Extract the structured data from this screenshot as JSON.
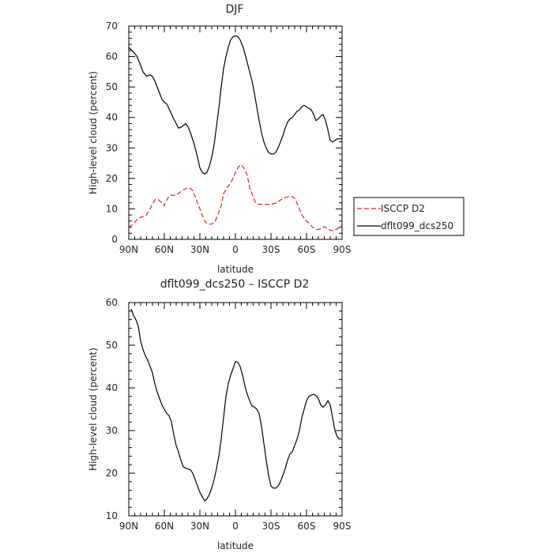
{
  "chart_data": [
    {
      "type": "line",
      "title": "DJF",
      "xlabel": "latitude",
      "ylabel": "High-level cloud (percent)",
      "xlim": [
        90,
        -90
      ],
      "ylim": [
        0,
        70
      ],
      "xticks": [
        90,
        60,
        30,
        0,
        -30,
        -60,
        -90
      ],
      "xtick_labels": [
        "90N",
        "60N",
        "30N",
        "0",
        "30S",
        "60S",
        "90S"
      ],
      "yticks": [
        0,
        10,
        20,
        30,
        40,
        50,
        60,
        70
      ],
      "ytick_labels": [
        "0",
        "10",
        "20",
        "30",
        "40",
        "50",
        "60",
        "70"
      ],
      "legend_position": "right-outside",
      "series": [
        {
          "name": "ISCCP D2",
          "color": "#e41a1c",
          "dash": "dashed",
          "x": [
            90,
            85,
            82,
            78,
            75,
            72,
            68,
            65,
            62,
            60,
            58,
            55,
            50,
            45,
            40,
            37,
            35,
            32,
            30,
            27,
            25,
            22,
            20,
            17,
            15,
            12,
            10,
            7,
            5,
            2,
            0,
            -3,
            -5,
            -7,
            -10,
            -12,
            -15,
            -17,
            -20,
            -22,
            -25,
            -27,
            -30,
            -35,
            -40,
            -45,
            -48,
            -50,
            -53,
            -56,
            -60,
            -63,
            -65,
            -68,
            -70,
            -73,
            -75,
            -78,
            -80,
            -83,
            -85,
            -88,
            -90
          ],
          "y": [
            4,
            5.5,
            7,
            7.5,
            8,
            10,
            13,
            13,
            12,
            11,
            13,
            14.5,
            14.5,
            16,
            17,
            16.5,
            15,
            12,
            10,
            7,
            5.5,
            5,
            5,
            6,
            8,
            11,
            15,
            17,
            18,
            20,
            22,
            24,
            24.5,
            23.5,
            21,
            17,
            14,
            12,
            11.5,
            11.5,
            11.5,
            11.5,
            11.5,
            12,
            13.5,
            14,
            14,
            13.5,
            11,
            8,
            6,
            5,
            4,
            3.3,
            3.3,
            3.6,
            4.2,
            3.5,
            3,
            2.8,
            3.3,
            4,
            5
          ]
        },
        {
          "name": "dflt099_dcs250",
          "color": "#000000",
          "dash": "solid",
          "x": [
            90,
            86,
            83,
            80,
            78,
            75,
            72,
            70,
            68,
            66,
            64,
            62,
            60,
            58,
            55,
            52,
            50,
            48,
            45,
            42,
            40,
            38,
            35,
            32,
            30,
            28,
            26,
            24,
            22,
            20,
            18,
            16,
            14,
            12,
            10,
            8,
            6,
            4,
            2,
            0,
            -2,
            -4,
            -6,
            -8,
            -10,
            -12,
            -14,
            -16,
            -18,
            -20,
            -22,
            -24,
            -26,
            -28,
            -30,
            -32,
            -34,
            -36,
            -38,
            -40,
            -42,
            -44,
            -46,
            -48,
            -50,
            -52,
            -54,
            -56,
            -58,
            -60,
            -62,
            -64,
            -66,
            -68,
            -70,
            -72,
            -74,
            -76,
            -78,
            -80,
            -82,
            -84,
            -86,
            -88,
            -90
          ],
          "y": [
            63,
            61.5,
            60,
            57,
            55,
            53.5,
            54,
            53.5,
            52,
            50,
            48,
            46,
            45,
            44.5,
            42,
            39.5,
            38,
            36.5,
            37,
            38,
            37,
            35,
            31.5,
            27,
            23.5,
            22,
            21.5,
            22,
            24,
            27,
            31,
            37,
            43,
            50,
            56,
            60,
            63,
            65.5,
            66.5,
            66.8,
            66.5,
            65.5,
            63.5,
            61,
            58,
            55,
            52,
            48,
            43.5,
            39,
            35,
            32,
            30,
            28.5,
            28,
            28,
            28.5,
            30,
            32,
            34,
            36.5,
            38.5,
            39.5,
            40,
            41,
            42,
            42.5,
            43.5,
            44,
            43.5,
            43,
            42.5,
            41,
            39,
            39.5,
            40.5,
            41,
            39,
            36,
            32.5,
            32,
            32.5,
            33,
            33,
            33
          ]
        }
      ]
    },
    {
      "type": "line",
      "title": "dflt099_dcs250 – ISCCP D2",
      "xlabel": "latitude",
      "ylabel": "High-level cloud (percent)",
      "xlim": [
        90,
        -90
      ],
      "ylim": [
        10,
        60
      ],
      "xticks": [
        90,
        60,
        30,
        0,
        -30,
        -60,
        -90
      ],
      "xtick_labels": [
        "90N",
        "60N",
        "30N",
        "0",
        "30S",
        "60S",
        "90S"
      ],
      "yticks": [
        10,
        20,
        30,
        40,
        50,
        60
      ],
      "ytick_labels": [
        "10",
        "20",
        "30",
        "40",
        "50",
        "60"
      ],
      "series": [
        {
          "color": "#000000",
          "dash": "solid",
          "x": [
            88,
            86,
            84,
            82,
            80,
            78,
            76,
            74,
            72,
            70,
            68,
            66,
            64,
            62,
            60,
            58,
            56,
            54,
            52,
            50,
            48,
            46,
            44,
            42,
            40,
            38,
            36,
            34,
            32,
            30,
            28,
            26,
            24,
            22,
            20,
            18,
            16,
            14,
            12,
            10,
            8,
            6,
            4,
            2,
            0,
            -2,
            -4,
            -6,
            -8,
            -10,
            -12,
            -14,
            -16,
            -18,
            -20,
            -22,
            -24,
            -26,
            -28,
            -30,
            -32,
            -34,
            -36,
            -38,
            -40,
            -42,
            -44,
            -46,
            -48,
            -50,
            -52,
            -54,
            -56,
            -58,
            -60,
            -62,
            -64,
            -66,
            -68,
            -70,
            -72,
            -74,
            -76,
            -78,
            -80,
            -82,
            -84,
            -86,
            -88
          ],
          "y": [
            58.5,
            57,
            56,
            54.5,
            51,
            49,
            47.5,
            46.5,
            45,
            43.5,
            41,
            39,
            37.5,
            36,
            35,
            34,
            33.5,
            32,
            29,
            26.5,
            25,
            23,
            21.5,
            21.2,
            21,
            20.8,
            20,
            18.5,
            17,
            15.5,
            14.5,
            13.5,
            14,
            15,
            16.5,
            18.5,
            21,
            24,
            28,
            33,
            38,
            41,
            43,
            44.5,
            46.2,
            46,
            45,
            43,
            40.5,
            38.5,
            37,
            35.8,
            35.5,
            35,
            34,
            31,
            27,
            23,
            19.5,
            17,
            16.5,
            16.5,
            17,
            18,
            19.5,
            21,
            23,
            24.5,
            25,
            26.5,
            28,
            30,
            33,
            35,
            37,
            38,
            38.3,
            38.5,
            38.2,
            37.5,
            36,
            35.5,
            36,
            37,
            36,
            33,
            30,
            28.5,
            28
          ]
        }
      ]
    }
  ]
}
